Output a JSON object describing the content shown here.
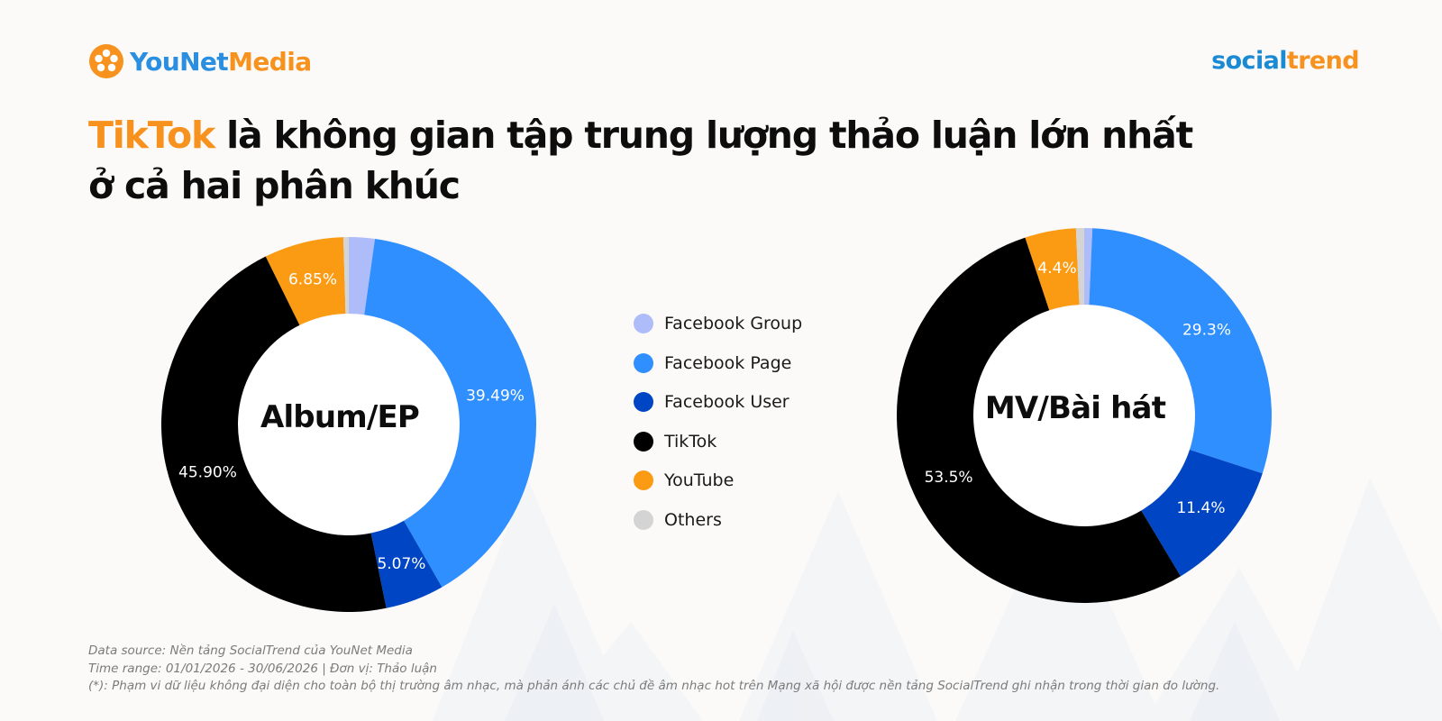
{
  "brand_left": {
    "part_a": "YouNet",
    "part_b": "Media",
    "logo_icon": "younet-flower-logo"
  },
  "brand_right": {
    "part_a": "social",
    "part_b": "trend"
  },
  "headline": {
    "highlight": "TikTok",
    "line1_rest": " là không gian tập trung lượng thảo luận lớn nhất",
    "line2": "ở cả hai phân khúc"
  },
  "legend": [
    {
      "label": "Facebook Group",
      "color": "#aebdfa"
    },
    {
      "label": "Facebook Page",
      "color": "#2f8fff"
    },
    {
      "label": "Facebook User",
      "color": "#0046c4"
    },
    {
      "label": "TikTok",
      "color": "#000000"
    },
    {
      "label": "YouTube",
      "color": "#fb9a13"
    },
    {
      "label": "Others",
      "color": "#d4d4d4"
    }
  ],
  "chart_data": [
    {
      "type": "pie",
      "variant": "donut",
      "center_label": "Album/EP",
      "slices": [
        {
          "name": "Facebook Group",
          "value": 2.23,
          "label": ""
        },
        {
          "name": "Facebook Page",
          "value": 39.49,
          "label": "39.49%"
        },
        {
          "name": "Facebook User",
          "value": 5.07,
          "label": "5.07%"
        },
        {
          "name": "TikTok",
          "value": 45.9,
          "label": "45.90%"
        },
        {
          "name": "YouTube",
          "value": 6.85,
          "label": "6.85%"
        },
        {
          "name": "Others",
          "value": 0.46,
          "label": ""
        }
      ]
    },
    {
      "type": "pie",
      "variant": "donut",
      "center_label": "MV/Bài hát",
      "slices": [
        {
          "name": "Facebook Group",
          "value": 0.7,
          "label": ""
        },
        {
          "name": "Facebook Page",
          "value": 29.3,
          "label": "29.3%"
        },
        {
          "name": "Facebook User",
          "value": 11.4,
          "label": "11.4%"
        },
        {
          "name": "TikTok",
          "value": 53.5,
          "label": "53.5%"
        },
        {
          "name": "YouTube",
          "value": 4.4,
          "label": "4.4%"
        },
        {
          "name": "Others",
          "value": 0.7,
          "label": ""
        }
      ]
    }
  ],
  "footnotes": {
    "source": "Data source: Nền tảng SocialTrend của YouNet Media",
    "time_range": "Time range: 01/01/2026 - 30/06/2026 | Đơn vị: Thảo luận",
    "disclaimer": "(*): Phạm vi dữ liệu không đại diện cho toàn bộ thị trường âm nhạc, mà phản ánh các chủ đề âm nhạc hot trên Mạng xã hội được nền tảng SocialTrend ghi nhận trong thời gian đo lường."
  }
}
